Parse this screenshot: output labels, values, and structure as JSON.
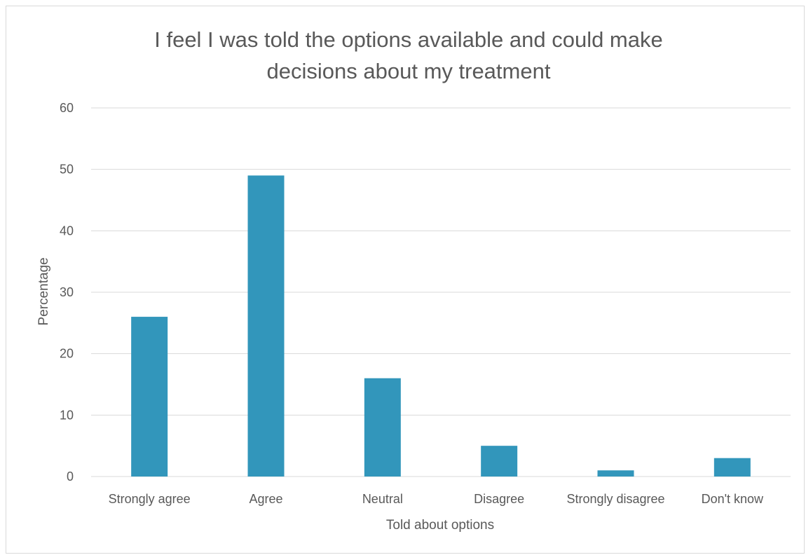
{
  "chart_data": {
    "type": "bar",
    "title_lines": [
      "I feel I was told the options available and could make",
      "decisions about my treatment"
    ],
    "xlabel": "Told about options",
    "ylabel": "Percentage",
    "categories": [
      "Strongly agree",
      "Agree",
      "Neutral",
      "Disagree",
      "Strongly disagree",
      "Don't know"
    ],
    "values": [
      26,
      49,
      16,
      5,
      1,
      3
    ],
    "ylim": [
      0,
      60
    ],
    "yticks": [
      "0",
      "10",
      "20",
      "30",
      "40",
      "50",
      "60"
    ],
    "grid": true,
    "legend": "none",
    "bar_color": "#3296bb"
  }
}
